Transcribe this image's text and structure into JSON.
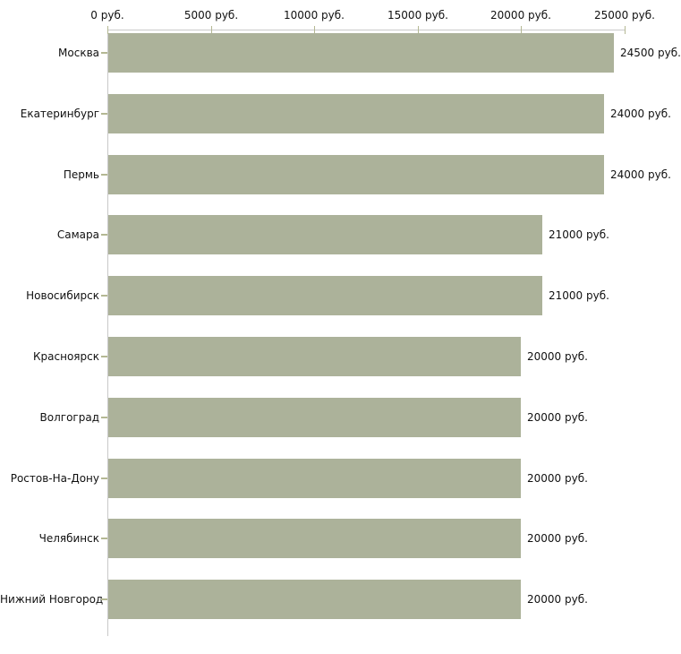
{
  "chart_data": {
    "type": "bar",
    "orientation": "horizontal",
    "title": "",
    "xlabel": "",
    "ylabel": "",
    "unit": "руб.",
    "xlim": [
      0,
      25000
    ],
    "grid": false,
    "legend": null,
    "categories": [
      "Москва",
      "Екатеринбург",
      "Пермь",
      "Самара",
      "Новосибирск",
      "Красноярск",
      "Волгоград",
      "Ростов-На-Дону",
      "Челябинск",
      "Нижний Новгород"
    ],
    "values": [
      24500,
      24000,
      24000,
      21000,
      21000,
      20000,
      20000,
      20000,
      20000,
      20000
    ],
    "bar_labels": [
      "24500 руб.",
      "24000 руб.",
      "24000 руб.",
      "21000 руб.",
      "21000 руб.",
      "20000 руб.",
      "20000 руб.",
      "20000 руб.",
      "20000 руб.",
      "20000 руб."
    ],
    "x_ticks": [
      {
        "value": 0,
        "label": "0 руб."
      },
      {
        "value": 5000,
        "label": "5000 руб."
      },
      {
        "value": 10000,
        "label": "10000 руб."
      },
      {
        "value": 15000,
        "label": "15000 руб."
      },
      {
        "value": 20000,
        "label": "20000 руб."
      },
      {
        "value": 25000,
        "label": "25000 руб."
      }
    ]
  },
  "colors": {
    "bar": "#acb29a",
    "axis_line": "#c9c9c9",
    "tick": "#b4b893",
    "text": "#111111",
    "background": "#ffffff"
  }
}
